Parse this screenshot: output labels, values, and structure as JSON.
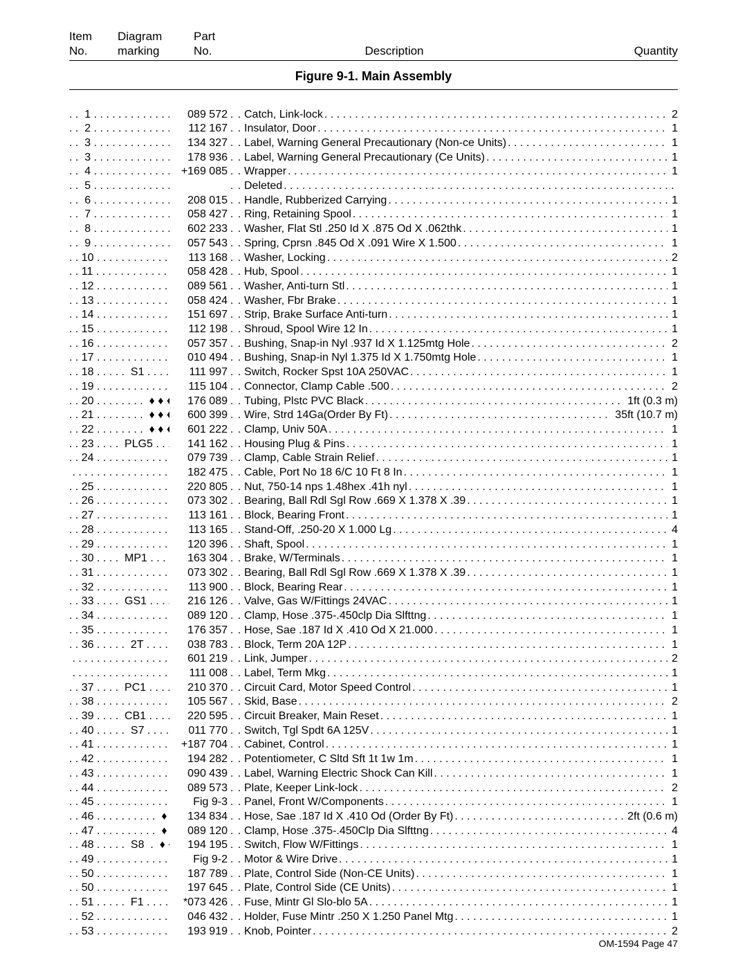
{
  "header": {
    "item_line1": "Item",
    "item_line2": "No.",
    "diagram_line1": "Diagram",
    "diagram_line2": "marking",
    "part_line1": "Part",
    "part_line2": "No.",
    "description": "Description",
    "quantity": "Quantity"
  },
  "figure_title": "Figure 9-1. Main Assembly",
  "footer": "OM-1594 Page 47",
  "rows": [
    {
      "item": ". .  1",
      "part": "089 572",
      "desc": "Catch, Link-lock",
      "qty": "2"
    },
    {
      "item": ". .  2",
      "part": "112 167",
      "desc": "Insulator, Door",
      "qty": "1"
    },
    {
      "item": ". .  3",
      "part": "134 327",
      "desc": "Label, Warning General Precautionary (Non-ce Units)",
      "qty": "1"
    },
    {
      "item": ". .  3",
      "part": "178 936",
      "desc": "Label, Warning General Precautionary (Ce Units)",
      "qty": "1"
    },
    {
      "item": ". .  4",
      "part": "+169 085",
      "desc": "Wrapper",
      "qty": "1"
    },
    {
      "item": ". .  5",
      "part": "",
      "desc": "Deleted",
      "qty": ""
    },
    {
      "item": ". .  6",
      "part": "208 015",
      "desc": "Handle, Rubberized Carrying",
      "qty": "1"
    },
    {
      "item": ". .  7",
      "part": "058 427",
      "desc": "Ring, Retaining Spool",
      "qty": "1"
    },
    {
      "item": ". .  8",
      "part": "602 233",
      "desc": "Washer, Flat Stl .250 Id X .875 Od X .062thk",
      "qty": "1"
    },
    {
      "item": ". .  9",
      "part": "057 543",
      "desc": "Spring, Cprsn .845 Od X .091 Wire X 1.500",
      "qty": "1"
    },
    {
      "item": ". . 10",
      "part": "113 168",
      "desc": "Washer, Locking",
      "qty": "2"
    },
    {
      "item": ". . 11",
      "part": "058 428",
      "desc": "Hub, Spool",
      "qty": "1"
    },
    {
      "item": ". . 12",
      "part": "089 561",
      "desc": "Washer, Anti-turn Stl",
      "qty": "1"
    },
    {
      "item": ". . 13",
      "part": "058 424",
      "desc": "Washer, Fbr Brake",
      "qty": "1"
    },
    {
      "item": ". . 14",
      "part": "151 697",
      "desc": "Strip, Brake Surface Anti-turn",
      "qty": "1"
    },
    {
      "item": ". . 15",
      "part": "112 198",
      "desc": "Shroud, Spool Wire 12 In",
      "qty": "1"
    },
    {
      "item": ". . 16",
      "part": "057 357",
      "desc": "Bushing, Snap-in Nyl .937 Id X 1.125mtg Hole",
      "qty": "2"
    },
    {
      "item": ". . 17",
      "part": "010 494",
      "desc": "Bushing, Snap-in Nyl 1.375 Id X 1.750mtg Hole",
      "qty": "1"
    },
    {
      "item": ". . 18 . . . . .  S1",
      "part": "111 997",
      "desc": "Switch, Rocker Spst 10A 250VAC",
      "qty": "1"
    },
    {
      "item": ". . 19",
      "part": "115 104",
      "desc": "Connector, Clamp Cable .500",
      "qty": "2"
    },
    {
      "item": ". . 20 . . . . . . . .  ♦ ♦ ♦ ♦",
      "part": "176 089",
      "desc": "Tubing, Plstc PVC Black",
      "qty": "1ft (0.3 m)"
    },
    {
      "item": ". . 21 . . . . . . . .  ♦ ♦ ♦ ♦",
      "part": "600 399",
      "desc": "Wire, Strd 14Ga(Order By Ft)",
      "qty": "35ft (10.7 m)"
    },
    {
      "item": ". . 22 . . . . . . . .  ♦ ♦ ♦ ♦",
      "part": "601 222",
      "desc": "Clamp, Univ 50A",
      "qty": "1"
    },
    {
      "item": ". . 23 . . . .  PLG5",
      "part": "141 162",
      "desc": "Housing Plug & Pins",
      "qty": "1"
    },
    {
      "item": ". . 24",
      "part": "079 739",
      "desc": "Clamp, Cable Strain Relief",
      "qty": "1"
    },
    {
      "item": "",
      "part": "182 475",
      "desc": "Cable, Port No 18 6/C 10 Ft 8 In",
      "qty": "1"
    },
    {
      "item": ". . 25",
      "part": "220 805",
      "desc": "Nut, 750-14 nps 1.48hex .41h nyl",
      "qty": "1"
    },
    {
      "item": ". . 26",
      "part": "073 302",
      "desc": "Bearing, Ball Rdl Sgl Row .669 X 1.378 X .39",
      "qty": "1"
    },
    {
      "item": ". . 27",
      "part": "113 161",
      "desc": "Block, Bearing Front",
      "qty": "1"
    },
    {
      "item": ". . 28",
      "part": "113 165",
      "desc": "Stand-Off, .250-20 X 1.000 Lg",
      "qty": "4"
    },
    {
      "item": ". . 29",
      "part": "120 396",
      "desc": "Shaft, Spool",
      "qty": "1"
    },
    {
      "item": ". . 30 . . . .  MP1",
      "part": "163 304",
      "desc": "Brake, W/Terminals",
      "qty": "1"
    },
    {
      "item": ". . 31",
      "part": "073 302",
      "desc": "Bearing, Ball Rdl Sgl Row .669 X 1.378 X .39",
      "qty": "1"
    },
    {
      "item": ". . 32",
      "part": "113 900",
      "desc": "Block, Bearing Rear",
      "qty": "1"
    },
    {
      "item": ". . 33 . . . .  GS1",
      "part": "216 126",
      "desc": "Valve, Gas W/Fittings 24VAC",
      "qty": "1"
    },
    {
      "item": ". . 34",
      "part": "089 120",
      "desc": "Clamp, Hose .375-.450clp Dia Slfttng",
      "qty": "1"
    },
    {
      "item": ". . 35",
      "part": "176 357",
      "desc": "Hose, Sae .187 Id X .410 Od X 21.000",
      "qty": "1"
    },
    {
      "item": ". . 36 . . . . .  2T",
      "part": "038 783",
      "desc": "Block, Term 20A 12P",
      "qty": "1"
    },
    {
      "item": "",
      "part": "601 219",
      "desc": "Link, Jumper",
      "qty": "2"
    },
    {
      "item": "",
      "part": "111 008",
      "desc": "Label, Term Mkg",
      "qty": "1"
    },
    {
      "item": ". . 37 . . . .  PC1",
      "part": "210 370",
      "desc": "Circuit Card, Motor Speed Control",
      "qty": "1"
    },
    {
      "item": ". . 38",
      "part": "105 567",
      "desc": "Skid, Base",
      "qty": "2"
    },
    {
      "item": ". . 39 . . . .  CB1",
      "part": "220 595",
      "desc": "Circuit Breaker, Main Reset",
      "qty": "1"
    },
    {
      "item": ". . 40 . . . . .  S7",
      "part": "011 770",
      "desc": "Switch, Tgl Spdt 6A 125V",
      "qty": "1"
    },
    {
      "item": ". . 41",
      "part": "+187 704",
      "desc": "Cabinet, Control",
      "qty": "1"
    },
    {
      "item": ". . 42 . . . . . . . . . . . .  ♦",
      "part": "194 282",
      "desc": "Potentiometer, C Sltd Sft 1t 1w 1m",
      "qty": "1"
    },
    {
      "item": ". . 43",
      "part": "090 439",
      "desc": "Label, Warning Electric Shock Can Kill",
      "qty": "1"
    },
    {
      "item": ". . 44",
      "part": "089 573",
      "desc": "Plate, Keeper Link-lock",
      "qty": "2"
    },
    {
      "item": ". . 45",
      "part": "Fig 9-3",
      "desc": "Panel, Front W/Components",
      "qty": "1"
    },
    {
      "item": ". . 46 . . . . . . . . . .  ♦ ♦ ♦",
      "part": "134 834",
      "desc": "Hose, Sae .187 Id X .410 Od (Order By Ft)",
      "qty": "2ft (0.6 m)"
    },
    {
      "item": ". . 47 . . . . . . . . . .  ♦ ♦ ♦",
      "part": "089 120",
      "desc": "Clamp, Hose .375-.450Clp Dia Slfttng",
      "qty": "4"
    },
    {
      "item": ". . 48 . . . . .  S8  .  ♦ ♦ ♦",
      "part": "194 195",
      "desc": "Switch, Flow W/Fittings",
      "qty": "1"
    },
    {
      "item": ". . 49",
      "part": "Fig 9-2",
      "desc": "Motor & Wire Drive",
      "qty": "1"
    },
    {
      "item": ". . 50",
      "part": "187 789",
      "desc": "Plate, Control Side (Non-CE Units)",
      "qty": "1"
    },
    {
      "item": ". . 50",
      "part": "197 645",
      "desc": "Plate, Control Side (CE Units)",
      "qty": "1"
    },
    {
      "item": ". . 51 . . . . .  F1",
      "part": "*073 426",
      "desc": "Fuse, Mintr Gl Slo-blo 5A",
      "qty": "1"
    },
    {
      "item": ". . 52",
      "part": "046 432",
      "desc": "Holder, Fuse Mintr .250 X 1.250 Panel Mtg",
      "qty": "1"
    },
    {
      "item": ". . 53",
      "part": "193 919",
      "desc": "Knob, Pointer",
      "qty": "2"
    }
  ]
}
